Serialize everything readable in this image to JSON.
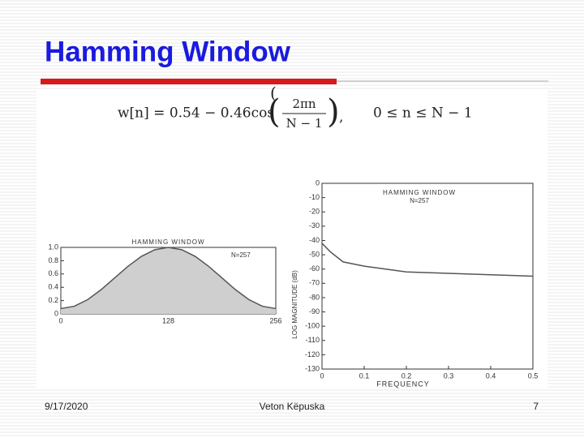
{
  "title": "Hamming Window",
  "formula": {
    "lhs": "w[n] = 0.54 − 0.46cos",
    "numerator": "2πn",
    "denominator": "N − 1",
    "condition": "0 ≤ n ≤ N − 1"
  },
  "charts": [
    {
      "type": "line",
      "title": "HAMMING WINDOW",
      "annotation": "N=257",
      "x": [
        0,
        16,
        32,
        48,
        64,
        80,
        96,
        112,
        128,
        144,
        160,
        176,
        192,
        208,
        224,
        240,
        256
      ],
      "values": [
        0.08,
        0.115,
        0.215,
        0.364,
        0.54,
        0.716,
        0.865,
        0.965,
        1.0,
        0.965,
        0.865,
        0.716,
        0.54,
        0.364,
        0.215,
        0.115,
        0.08
      ],
      "xlim": [
        0,
        256
      ],
      "ylim": [
        0,
        1.0
      ],
      "xticks": [
        0,
        128,
        256
      ],
      "yticks": [
        0,
        {
          "value": 0.2,
          "label": "0.2"
        },
        {
          "value": 0.4,
          "label": "0.4"
        },
        {
          "value": 0.6,
          "label": "0.6"
        },
        {
          "value": 0.8,
          "label": "0.8"
        },
        {
          "value": 1.0,
          "label": "1.0"
        }
      ],
      "color": "#555555"
    },
    {
      "type": "line",
      "title": "HAMMING WINDOW",
      "annotation": "N=257",
      "xlabel": "FREQUENCY",
      "ylabel": "LOG MAGNITUDE (dB)",
      "x": [
        0,
        0.02,
        0.05,
        0.1,
        0.2,
        0.3,
        0.4,
        0.5
      ],
      "values": [
        -42,
        -48,
        -55,
        -58,
        -62,
        -63,
        -64,
        -65
      ],
      "xlim": [
        0,
        0.5
      ],
      "ylim": [
        -130,
        0
      ],
      "xticks": [
        0,
        0.1,
        0.2,
        0.3,
        0.4,
        0.5
      ],
      "yticks": [
        0,
        -10,
        -20,
        -30,
        -40,
        -50,
        -60,
        -70,
        -80,
        -90,
        -100,
        -110,
        -120,
        -130
      ],
      "color": "#555555"
    }
  ],
  "footer": {
    "date": "9/17/2020",
    "author": "Veton Këpuska",
    "page": "7"
  }
}
